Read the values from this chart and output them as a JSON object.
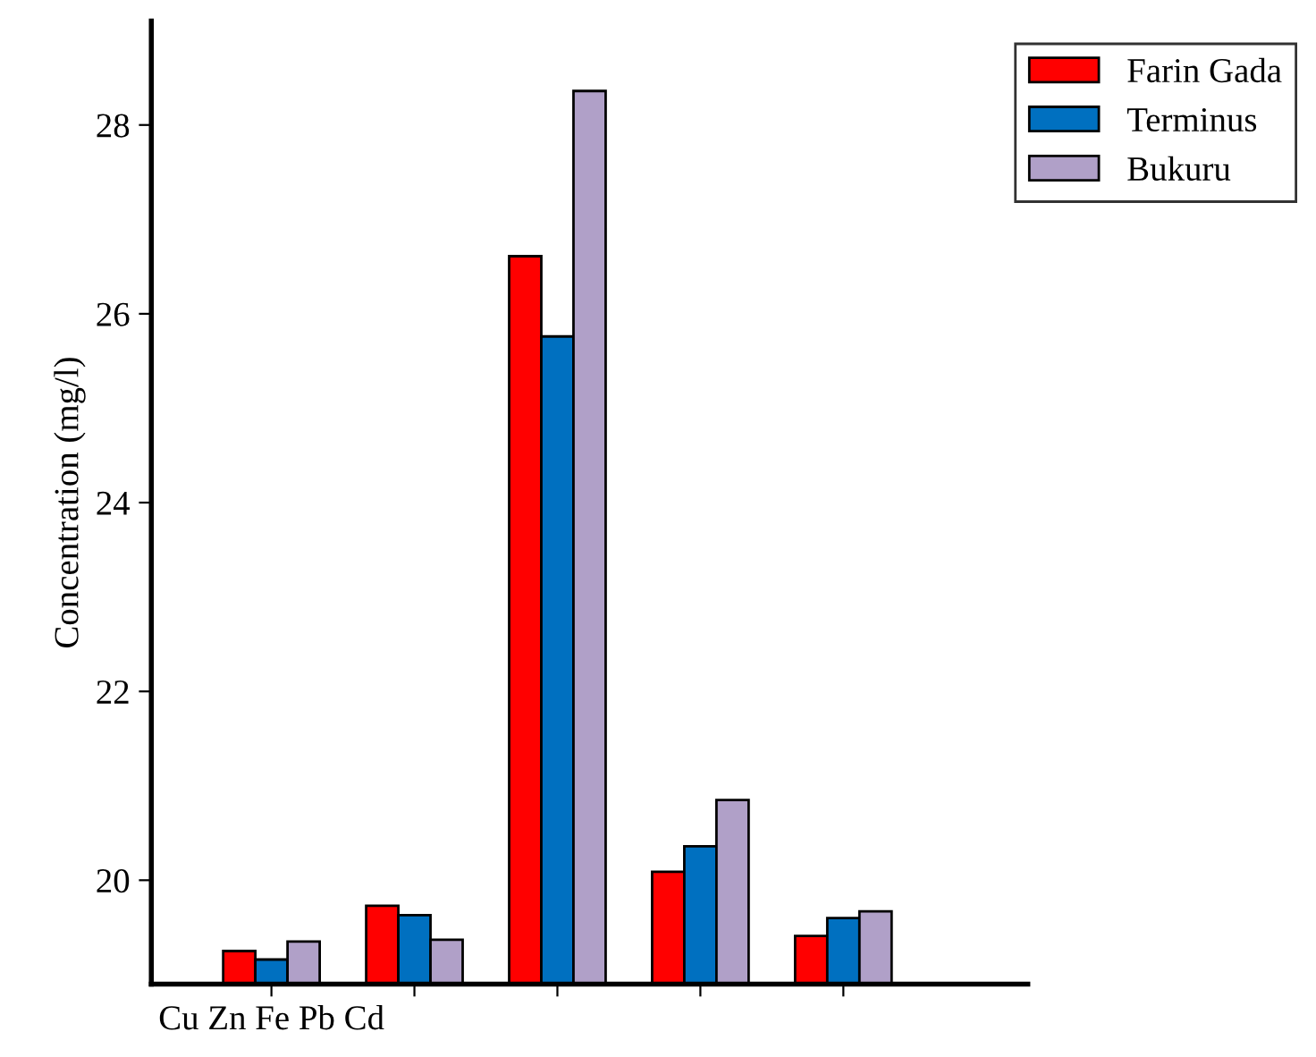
{
  "chart_data": {
    "type": "bar",
    "ylabel": "Concentration (mg/l)",
    "categories": [
      "Cu Zn Fe Pb Cd",
      null,
      null,
      null,
      null
    ],
    "series": [
      {
        "name": "Farin Gada",
        "color": "#ff0000",
        "values": [
          19.25,
          19.73,
          26.61,
          20.09,
          19.41
        ]
      },
      {
        "name": "Terminus",
        "color": "#0070c0",
        "values": [
          19.16,
          19.63,
          25.76,
          20.36,
          19.6
        ]
      },
      {
        "name": "Bukuru",
        "color": "#b0a0c8",
        "values": [
          19.35,
          19.37,
          28.36,
          20.85,
          19.67
        ]
      }
    ],
    "ylim": [
      18.9,
      29.1
    ],
    "yticks": [
      20,
      22,
      24,
      26,
      28
    ],
    "grid": false,
    "legend": "top right"
  }
}
